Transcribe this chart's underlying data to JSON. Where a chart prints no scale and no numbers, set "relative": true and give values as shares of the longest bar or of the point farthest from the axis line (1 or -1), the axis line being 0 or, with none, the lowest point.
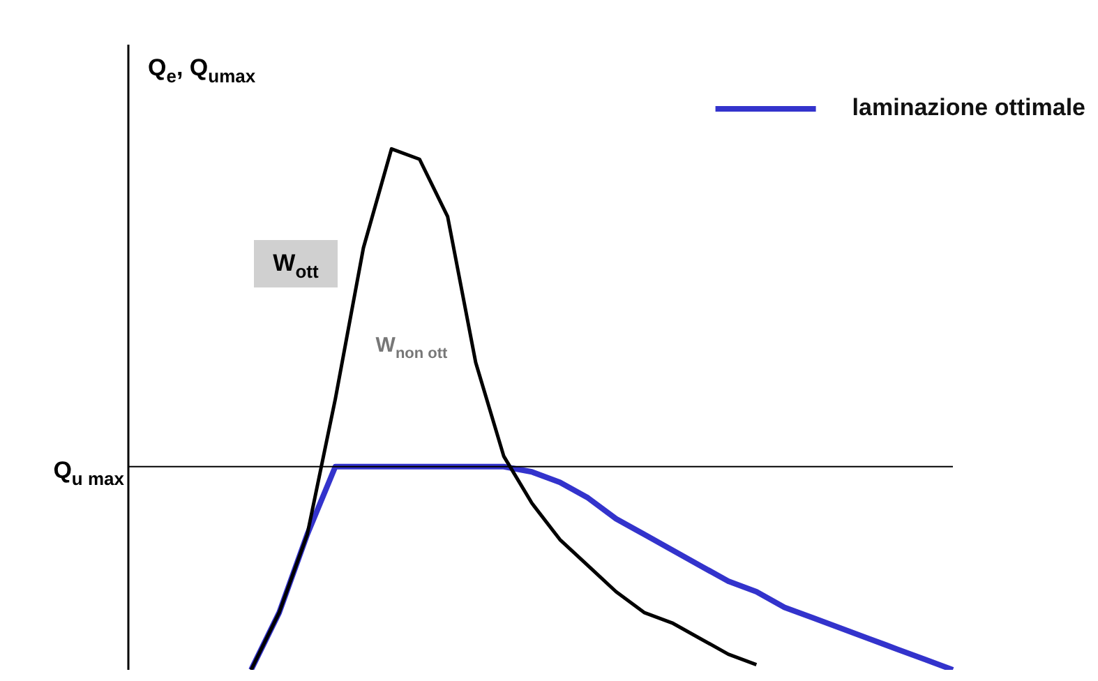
{
  "chart_data": {
    "type": "line",
    "relative": true,
    "ylabel": "Q$_{e}$, Q$_{umax}$",
    "categories": [
      null,
      null,
      null,
      null,
      null,
      null,
      null,
      null,
      null,
      null,
      null,
      null,
      null,
      null,
      null,
      null,
      null,
      null,
      null,
      null,
      null,
      null,
      null,
      null,
      null,
      null
    ],
    "series": [
      {
        "color": "#000000",
        "values": [
          0,
          0.11,
          0.26,
          0.52,
          0.81,
          1,
          0.98,
          0.87,
          0.59,
          0.41,
          0.32,
          0.25,
          0.2,
          0.15,
          0.11,
          0.09,
          0.06,
          0.03,
          0.01,
          null,
          null,
          null,
          null,
          null,
          null,
          null
        ]
      },
      {
        "name": "laminazione ottimale",
        "color": "#3333cc",
        "values": [
          0,
          0.11,
          0.26,
          0.39,
          0.39,
          0.39,
          0.39,
          0.39,
          0.39,
          0.39,
          0.38,
          0.36,
          0.33,
          0.29,
          0.26,
          0.23,
          0.2,
          0.17,
          0.15,
          0.12,
          0.1,
          0.08,
          0.06,
          0.04,
          0.02,
          0
        ]
      }
    ],
    "ref_lines": [
      {
        "axis": "y",
        "value": 0.39,
        "label": "Q$_{u max}$",
        "color": "#000000"
      }
    ],
    "annotations": [
      "W$_{ott}$",
      "W$_{non ott}$"
    ],
    "legend": "top right",
    "marker": "none",
    "line_style": "solid"
  }
}
